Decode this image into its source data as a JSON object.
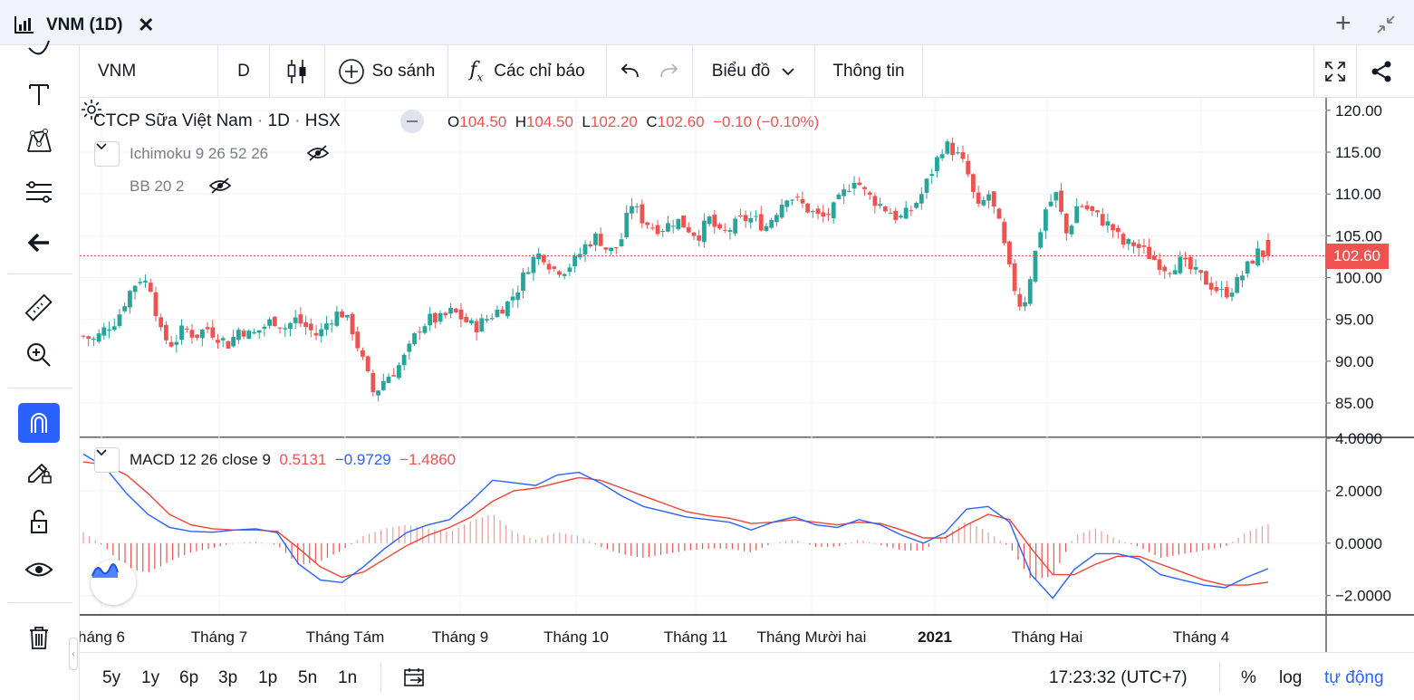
{
  "window": {
    "title": "VNM (1D)",
    "close_icon": "close-icon",
    "add_icon": "plus-icon",
    "collapse_icon": "shrink-icon"
  },
  "top_toolbar": {
    "symbol": "VNM",
    "interval": "D",
    "compare_label": "So sánh",
    "indicators_label": "Các chỉ báo",
    "chart_type_label": "Biểu đồ",
    "info_label": "Thông tin"
  },
  "legend": {
    "title": "CTCP Sữa Việt Nam",
    "interval": "1D",
    "exchange": "HSX",
    "open_label": "O",
    "open": "104.50",
    "high_label": "H",
    "high": "104.50",
    "low_label": "L",
    "low": "102.20",
    "close_label": "C",
    "close": "102.60",
    "change": "−0.10 (−0.10%)",
    "indicator_1": "Ichimoku 9 26 52 26",
    "indicator_2": "BB 20 2"
  },
  "macd_legend": {
    "name": "MACD 12 26 close 9",
    "hist": "0.5131",
    "macd": "−0.9729",
    "signal": "−1.4860"
  },
  "current_price_label": "102.60",
  "colors": {
    "up": "#26a69a",
    "down": "#ef5350",
    "macd_line": "#2962ff",
    "signal_line": "#f44336",
    "accent": "#2962ff"
  },
  "bottom_bar": {
    "ranges": [
      "5y",
      "1y",
      "6p",
      "3p",
      "1p",
      "5n",
      "1n"
    ],
    "time": "17:23:32 (UTC+7)",
    "percent": "%",
    "log": "log",
    "auto": "tự động"
  },
  "chart_data": {
    "type": "candlestick",
    "price_axis_ticks": [
      "120.00",
      "115.00",
      "110.00",
      "105.00",
      "100.00",
      "95.00",
      "90.00",
      "85.00"
    ],
    "price_range": [
      81,
      121.5
    ],
    "macd_axis_ticks": [
      "4.0000",
      "2.0000",
      "0.0000",
      "−2.0000"
    ],
    "macd_range": [
      -2.7,
      4.0
    ],
    "time_axis_labels": [
      "háng 6",
      "Tháng 7",
      "Tháng Tám",
      "Tháng 9",
      "Tháng 10",
      "Tháng 11",
      "Tháng Mười hai",
      "2021",
      "Tháng Hai",
      "Tháng 4"
    ],
    "close_path": [
      93,
      92.5,
      94,
      95,
      98,
      100,
      99,
      93,
      92,
      94,
      93,
      94,
      93,
      92,
      94,
      93,
      94,
      95,
      94,
      95,
      94,
      93,
      95,
      96,
      94,
      90,
      86,
      88,
      89,
      91,
      94,
      95,
      95,
      96,
      95,
      94,
      95,
      96,
      97,
      99,
      102,
      103,
      101,
      101,
      102,
      104,
      105,
      103,
      104,
      109,
      107,
      106,
      106,
      107,
      106,
      105,
      107,
      105,
      106,
      107,
      107,
      106,
      108,
      110,
      109,
      108,
      107,
      108,
      110,
      112,
      110,
      109,
      108,
      107,
      108,
      110,
      113,
      116,
      115,
      113,
      108,
      110,
      106,
      100,
      96,
      102,
      108,
      110,
      105,
      109,
      108,
      107,
      106,
      104,
      104,
      103,
      102,
      101,
      102,
      101,
      100,
      99,
      98,
      99,
      101,
      103,
      102.6
    ],
    "macd": [
      3.4,
      2.9,
      1.9,
      1.1,
      0.6,
      0.45,
      0.42,
      0.5,
      0.55,
      0.4,
      -0.8,
      -1.4,
      -1.5,
      -0.9,
      -0.2,
      0.4,
      0.7,
      0.9,
      1.6,
      2.4,
      2.3,
      2.2,
      2.6,
      2.7,
      2.3,
      1.8,
      1.4,
      1.2,
      1.0,
      0.9,
      0.8,
      0.5,
      0.8,
      1.0,
      0.7,
      0.6,
      0.9,
      0.7,
      0.3,
      0.0,
      0.4,
      1.3,
      1.4,
      0.8,
      -1.2,
      -2.1,
      -1.0,
      -0.4,
      -0.4,
      -0.6,
      -1.2,
      -1.4,
      -1.6,
      -1.7,
      -1.3,
      -0.97
    ],
    "signal": [
      3.1,
      3.0,
      2.6,
      1.9,
      1.1,
      0.7,
      0.55,
      0.5,
      0.5,
      0.45,
      -0.2,
      -0.9,
      -1.3,
      -1.1,
      -0.6,
      -0.1,
      0.3,
      0.6,
      1.0,
      1.6,
      2.0,
      2.1,
      2.3,
      2.5,
      2.4,
      2.1,
      1.8,
      1.5,
      1.2,
      1.05,
      0.95,
      0.75,
      0.8,
      0.9,
      0.8,
      0.7,
      0.8,
      0.75,
      0.5,
      0.2,
      0.2,
      0.7,
      1.1,
      0.9,
      -0.2,
      -1.2,
      -1.2,
      -0.8,
      -0.5,
      -0.5,
      -0.8,
      -1.1,
      -1.4,
      -1.6,
      -1.6,
      -1.49
    ]
  }
}
